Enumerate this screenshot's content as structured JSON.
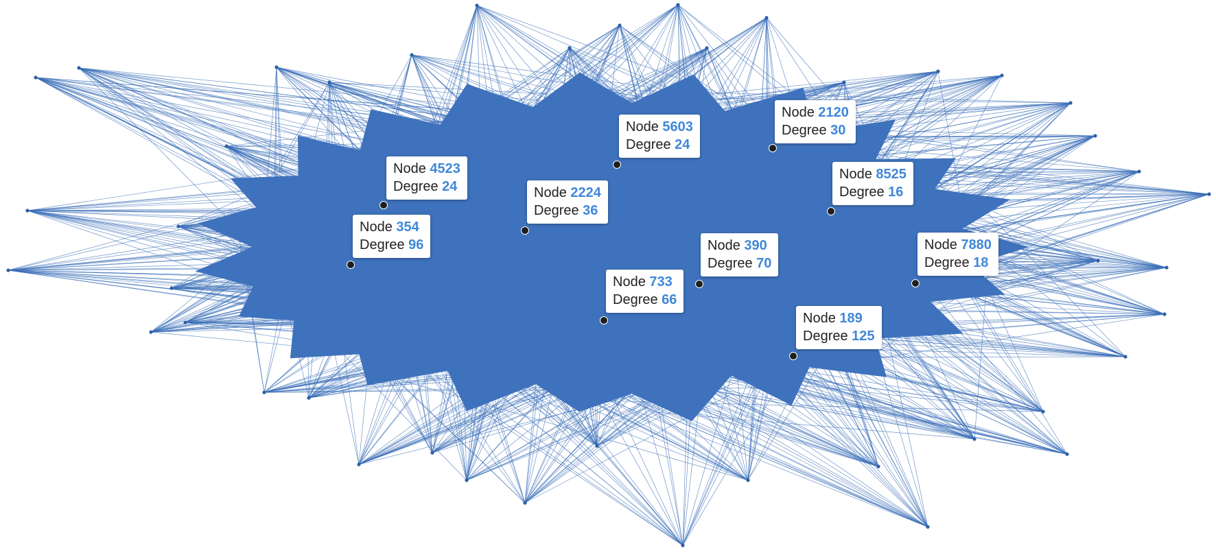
{
  "colors": {
    "edge": "#3b6fb8",
    "hub_fill": "#3f72bd",
    "label_number": "#3f87d9",
    "marker": "#1f1f1f"
  },
  "node_word": "Node",
  "degree_word": "Degree",
  "labels": [
    {
      "id": "4523",
      "degree": "24"
    },
    {
      "id": "354",
      "degree": "96"
    },
    {
      "id": "2224",
      "degree": "36"
    },
    {
      "id": "5603",
      "degree": "24"
    },
    {
      "id": "2120",
      "degree": "30"
    },
    {
      "id": "8525",
      "degree": "16"
    },
    {
      "id": "390",
      "degree": "70"
    },
    {
      "id": "733",
      "degree": "66"
    },
    {
      "id": "7880",
      "degree": "18"
    },
    {
      "id": "189",
      "degree": "125"
    }
  ]
}
